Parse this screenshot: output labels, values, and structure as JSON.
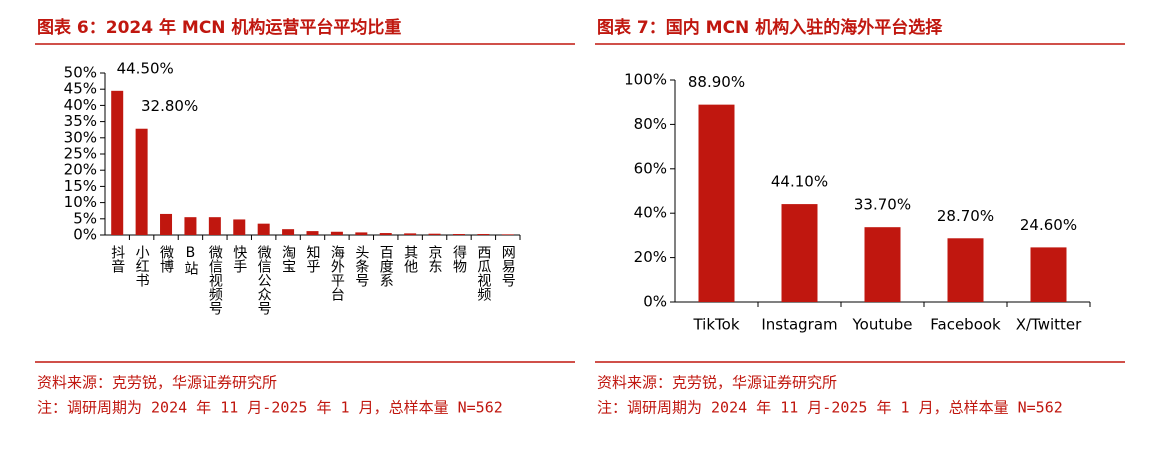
{
  "chart_data": [
    {
      "type": "bar",
      "title": "图表 6：2024 年 MCN 机构运营平台平均比重",
      "categories": [
        "抖音",
        "小红书",
        "微博",
        "B站",
        "微信视频号",
        "快手",
        "微信公众号",
        "淘宝",
        "知乎",
        "海外平台",
        "头条号",
        "百度系",
        "其他",
        "京东",
        "得物",
        "西瓜视频",
        "网易号"
      ],
      "values": [
        44.5,
        32.8,
        6.5,
        5.5,
        5.5,
        4.8,
        3.5,
        1.8,
        1.2,
        1.0,
        0.8,
        0.6,
        0.5,
        0.4,
        0.3,
        0.3,
        0.2
      ],
      "value_labels": [
        "44.50%",
        "32.80%",
        null,
        null,
        null,
        null,
        null,
        null,
        null,
        null,
        null,
        null,
        null,
        null,
        null,
        null,
        null
      ],
      "color": "#c0170f",
      "ylim": [
        0,
        50
      ],
      "yticks": [
        {
          "value": 0,
          "label": "0%"
        },
        {
          "value": 5,
          "label": "5%"
        },
        {
          "value": 10,
          "label": "10%"
        },
        {
          "value": 15,
          "label": "15%"
        },
        {
          "value": 20,
          "label": "20%"
        },
        {
          "value": 25,
          "label": "25%"
        },
        {
          "value": 30,
          "label": "30%"
        },
        {
          "value": 35,
          "label": "35%"
        },
        {
          "value": 40,
          "label": "40%"
        },
        {
          "value": 45,
          "label": "45%"
        },
        {
          "value": 50,
          "label": "50%"
        }
      ],
      "source": "资料来源：克劳锐，华源证券研究所",
      "note": "注：调研周期为 2024 年 11 月-2025 年 1 月，总样本量 N=562"
    },
    {
      "type": "bar",
      "title": "图表 7：国内 MCN 机构入驻的海外平台选择",
      "categories": [
        "TikTok",
        "Instagram",
        "Youtube",
        "Facebook",
        "X/Twitter"
      ],
      "values": [
        88.9,
        44.1,
        33.7,
        28.7,
        24.6
      ],
      "value_labels": [
        "88.90%",
        "44.10%",
        "33.70%",
        "28.70%",
        "24.60%"
      ],
      "color": "#c0170f",
      "ylim": [
        0,
        100
      ],
      "yticks": [
        {
          "value": 0,
          "label": "0%"
        },
        {
          "value": 20,
          "label": "20%"
        },
        {
          "value": 40,
          "label": "40%"
        },
        {
          "value": 60,
          "label": "60%"
        },
        {
          "value": 80,
          "label": "80%"
        },
        {
          "value": 100,
          "label": "100%"
        }
      ],
      "source": "资料来源：克劳锐，华源证券研究所",
      "note": "注：调研周期为 2024 年 11 月-2025 年 1 月，总样本量 N=562"
    }
  ]
}
